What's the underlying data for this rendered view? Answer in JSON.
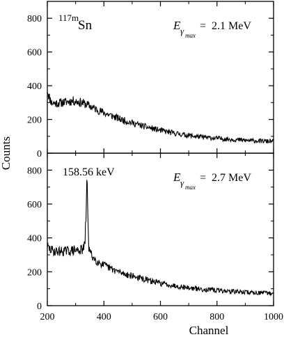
{
  "chart_data": [
    {
      "type": "line",
      "panel": "top",
      "isotope_mass": "117m",
      "isotope_symbol": "Sn",
      "energy_symbol": "E",
      "energy_subscript_main": "γ",
      "energy_subscript_sub": "max",
      "energy_value": "=  2.1 MeV",
      "ylabel": "Counts",
      "xlabel": "",
      "xlim": [
        200,
        1000
      ],
      "ylim": [
        0,
        900
      ],
      "yticks": [
        0,
        200,
        400,
        600,
        800
      ],
      "xticks": [
        200,
        400,
        600,
        800,
        1000
      ],
      "show_x_ticklabels": false,
      "grid": false,
      "series": [
        {
          "x": [
            200,
            205,
            215,
            230,
            250,
            270,
            290,
            310,
            330,
            350,
            370,
            400,
            430,
            460,
            500,
            550,
            600,
            650,
            700,
            750,
            800,
            850,
            900,
            950,
            1000
          ],
          "y": [
            380,
            340,
            300,
            295,
            300,
            305,
            310,
            305,
            295,
            280,
            262,
            240,
            220,
            200,
            180,
            155,
            135,
            118,
            105,
            95,
            88,
            82,
            76,
            72,
            70
          ]
        }
      ]
    },
    {
      "type": "line",
      "panel": "bottom",
      "energy_symbol": "E",
      "energy_subscript_main": "γ",
      "energy_subscript_sub": "max",
      "energy_value": "=  2.7 MeV",
      "peak_label": "158.56 keV",
      "peak_channel": 340,
      "ylabel": "Counts",
      "xlabel": "Channel",
      "xlim": [
        200,
        1000
      ],
      "ylim": [
        0,
        900
      ],
      "yticks": [
        0,
        200,
        400,
        600,
        800
      ],
      "xticks": [
        200,
        400,
        600,
        800,
        1000
      ],
      "show_x_ticklabels": true,
      "grid": false,
      "series": [
        {
          "x": [
            200,
            210,
            230,
            260,
            290,
            310,
            325,
            333,
            337,
            340,
            343,
            347,
            355,
            370,
            400,
            430,
            460,
            500,
            550,
            600,
            650,
            700,
            750,
            800,
            850,
            900,
            950,
            1000
          ],
          "y": [
            350,
            330,
            320,
            322,
            325,
            328,
            330,
            360,
            550,
            755,
            560,
            340,
            300,
            270,
            238,
            215,
            195,
            175,
            152,
            132,
            118,
            105,
            96,
            90,
            85,
            80,
            76,
            72
          ]
        }
      ]
    }
  ],
  "figure": {
    "ylabel": "Counts",
    "xlabel": "Channel",
    "xtick_labels": [
      "200",
      "400",
      "600",
      "800",
      "1000"
    ],
    "ytick_labels": [
      "0",
      "200",
      "400",
      "600",
      "800"
    ]
  }
}
